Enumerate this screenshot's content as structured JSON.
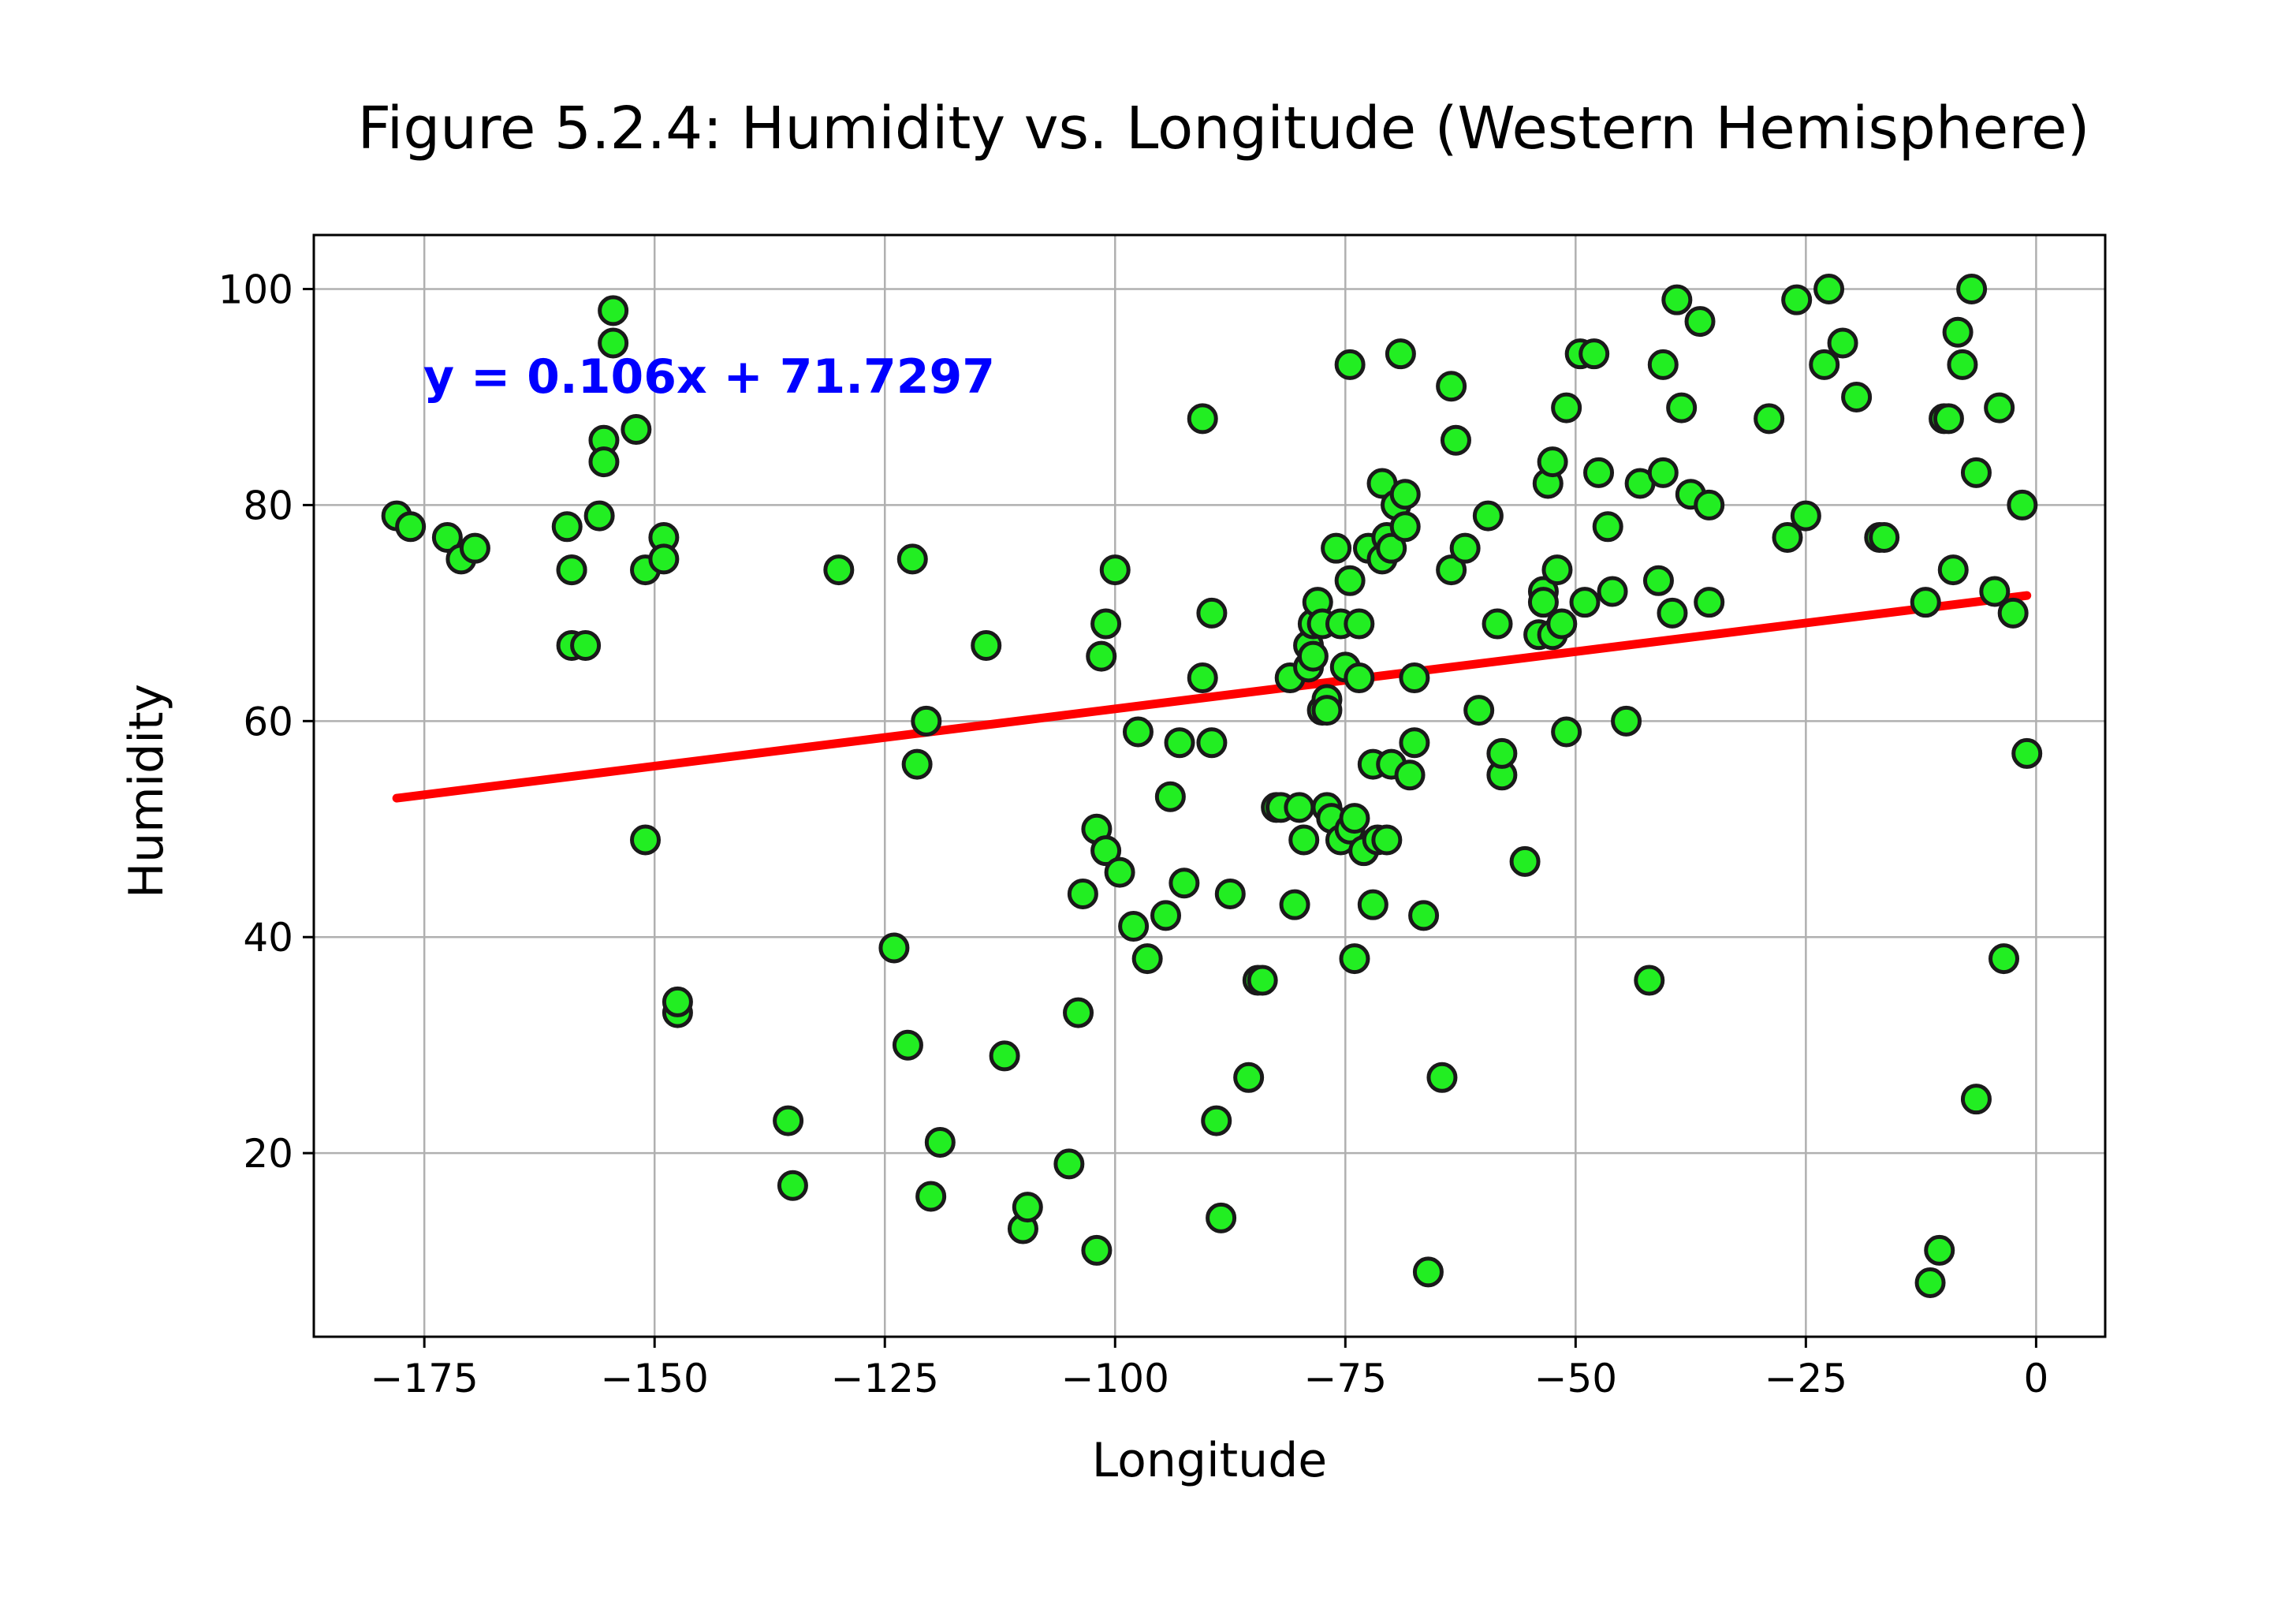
{
  "chart_data": {
    "type": "scatter",
    "title": "Figure 5.2.4: Humidity vs. Longitude (Western Hemisphere)",
    "xlabel": "Longitude",
    "ylabel": "Humidity",
    "xlim": [
      -187,
      7.5
    ],
    "ylim": [
      3,
      105
    ],
    "xticks": [
      -175,
      -150,
      -125,
      -100,
      -75,
      -50,
      -25,
      0
    ],
    "xtick_labels": [
      "−175",
      "−150",
      "−125",
      "−100",
      "−75",
      "−50",
      "−25",
      "0"
    ],
    "yticks": [
      20,
      40,
      60,
      80,
      100
    ],
    "ytick_labels": [
      "20",
      "40",
      "60",
      "80",
      "100"
    ],
    "grid": true,
    "marker_color": "#22ee22",
    "marker_edge_color": "#1a1a1a",
    "regression": {
      "equation": "y = 0.106x + 71.7297",
      "slope": 0.106,
      "intercept": 71.7297,
      "x_range": [
        -178,
        -1
      ],
      "line_color": "#ff0000",
      "label_color": "#0000ff"
    },
    "points": [
      [
        -178,
        79
      ],
      [
        -176.5,
        78
      ],
      [
        -172.5,
        77
      ],
      [
        -171,
        75
      ],
      [
        -169.5,
        76
      ],
      [
        -159.5,
        78
      ],
      [
        -159,
        74
      ],
      [
        -159,
        74
      ],
      [
        -159,
        67
      ],
      [
        -157.5,
        67
      ],
      [
        -156,
        79
      ],
      [
        -155.5,
        86
      ],
      [
        -155.5,
        84
      ],
      [
        -154.5,
        98
      ],
      [
        -154.5,
        95
      ],
      [
        -152,
        87
      ],
      [
        -151,
        74
      ],
      [
        -149,
        77
      ],
      [
        -149,
        75
      ],
      [
        -151,
        49
      ],
      [
        -147.5,
        33
      ],
      [
        -147.5,
        34
      ],
      [
        -135.5,
        23
      ],
      [
        -135,
        17
      ],
      [
        -130,
        74
      ],
      [
        -124,
        39
      ],
      [
        -122.5,
        30
      ],
      [
        -122,
        75
      ],
      [
        -121.5,
        56
      ],
      [
        -120.5,
        60
      ],
      [
        -120,
        16
      ],
      [
        -119,
        21
      ],
      [
        -114,
        67
      ],
      [
        -112,
        29
      ],
      [
        -110,
        13
      ],
      [
        -109.5,
        15
      ],
      [
        -105,
        19
      ],
      [
        -104,
        33
      ],
      [
        -103.5,
        44
      ],
      [
        -102,
        11
      ],
      [
        -102,
        50
      ],
      [
        -101.5,
        66
      ],
      [
        -101,
        69
      ],
      [
        -101,
        48
      ],
      [
        -100,
        74
      ],
      [
        -99.5,
        46
      ],
      [
        -98,
        41
      ],
      [
        -97.5,
        59
      ],
      [
        -96.5,
        38
      ],
      [
        -94.5,
        42
      ],
      [
        -94,
        53
      ],
      [
        -93,
        58
      ],
      [
        -92.5,
        45
      ],
      [
        -90.5,
        64
      ],
      [
        -90.5,
        88
      ],
      [
        -89.5,
        70
      ],
      [
        -89.5,
        58
      ],
      [
        -89,
        23
      ],
      [
        -88.5,
        14
      ],
      [
        -87.5,
        44
      ],
      [
        -85.5,
        27
      ],
      [
        -84.5,
        36
      ],
      [
        -84,
        36
      ],
      [
        -82.5,
        52
      ],
      [
        -82,
        52
      ],
      [
        -81,
        64
      ],
      [
        -80.5,
        43
      ],
      [
        -80,
        52
      ],
      [
        -79.5,
        49
      ],
      [
        -79,
        65
      ],
      [
        -79,
        67
      ],
      [
        -78.5,
        66
      ],
      [
        -78.5,
        69
      ],
      [
        -78,
        71
      ],
      [
        -77.5,
        69
      ],
      [
        -77.5,
        61
      ],
      [
        -77,
        62
      ],
      [
        -77,
        61
      ],
      [
        -77,
        52
      ],
      [
        -76.5,
        51
      ],
      [
        -76,
        76
      ],
      [
        -75.5,
        69
      ],
      [
        -75.5,
        49
      ],
      [
        -75,
        65
      ],
      [
        -74.5,
        93
      ],
      [
        -74.5,
        73
      ],
      [
        -74.5,
        50
      ],
      [
        -74,
        38
      ],
      [
        -74,
        51
      ],
      [
        -73.5,
        69
      ],
      [
        -73.5,
        64
      ],
      [
        -73,
        48
      ],
      [
        -72.5,
        76
      ],
      [
        -72,
        56
      ],
      [
        -72,
        43
      ],
      [
        -71.5,
        49
      ],
      [
        -71,
        82
      ],
      [
        -71,
        75
      ],
      [
        -70.5,
        49
      ],
      [
        -70.5,
        77
      ],
      [
        -70,
        56
      ],
      [
        -70,
        76
      ],
      [
        -69.5,
        80
      ],
      [
        -69,
        94
      ],
      [
        -68.5,
        78
      ],
      [
        -68.5,
        81
      ],
      [
        -68,
        55
      ],
      [
        -67.5,
        58
      ],
      [
        -67.5,
        64
      ],
      [
        -66.5,
        42
      ],
      [
        -66,
        9
      ],
      [
        -64.5,
        27
      ],
      [
        -63.5,
        91
      ],
      [
        -63.5,
        74
      ],
      [
        -63,
        86
      ],
      [
        -62,
        76
      ],
      [
        -60.5,
        61
      ],
      [
        -59.5,
        79
      ],
      [
        -58.5,
        69
      ],
      [
        -58,
        55
      ],
      [
        -58,
        57
      ],
      [
        -55.5,
        47
      ],
      [
        -54,
        68
      ],
      [
        -53.5,
        72
      ],
      [
        -53.5,
        71
      ],
      [
        -53,
        82
      ],
      [
        -52.5,
        68
      ],
      [
        -52.5,
        84
      ],
      [
        -52,
        74
      ],
      [
        -51.5,
        69
      ],
      [
        -51,
        89
      ],
      [
        -51,
        59
      ],
      [
        -49.5,
        94
      ],
      [
        -49,
        71
      ],
      [
        -48,
        94
      ],
      [
        -47.5,
        83
      ],
      [
        -46.5,
        78
      ],
      [
        -46,
        72
      ],
      [
        -44.5,
        60
      ],
      [
        -43,
        82
      ],
      [
        -42,
        36
      ],
      [
        -41,
        73
      ],
      [
        -40.5,
        83
      ],
      [
        -40.5,
        93
      ],
      [
        -39.5,
        70
      ],
      [
        -39,
        99
      ],
      [
        -38.5,
        89
      ],
      [
        -37.5,
        81
      ],
      [
        -36.5,
        97
      ],
      [
        -35.5,
        80
      ],
      [
        -35.5,
        71
      ],
      [
        -29,
        88
      ],
      [
        -27,
        77
      ],
      [
        -26,
        99
      ],
      [
        -25,
        79
      ],
      [
        -23,
        93
      ],
      [
        -22.5,
        100
      ],
      [
        -21,
        95
      ],
      [
        -19.5,
        90
      ],
      [
        -17,
        77
      ],
      [
        -16.5,
        77
      ],
      [
        -12,
        71
      ],
      [
        -11.5,
        8
      ],
      [
        -10.5,
        11
      ],
      [
        -10,
        88
      ],
      [
        -9.5,
        88
      ],
      [
        -9,
        74
      ],
      [
        -8.5,
        96
      ],
      [
        -8,
        93
      ],
      [
        -7,
        100
      ],
      [
        -6.5,
        83
      ],
      [
        -6.5,
        25
      ],
      [
        -4.5,
        72
      ],
      [
        -4,
        89
      ],
      [
        -3.5,
        38
      ],
      [
        -2.5,
        70
      ],
      [
        -1.5,
        80
      ],
      [
        -1,
        57
      ]
    ]
  }
}
